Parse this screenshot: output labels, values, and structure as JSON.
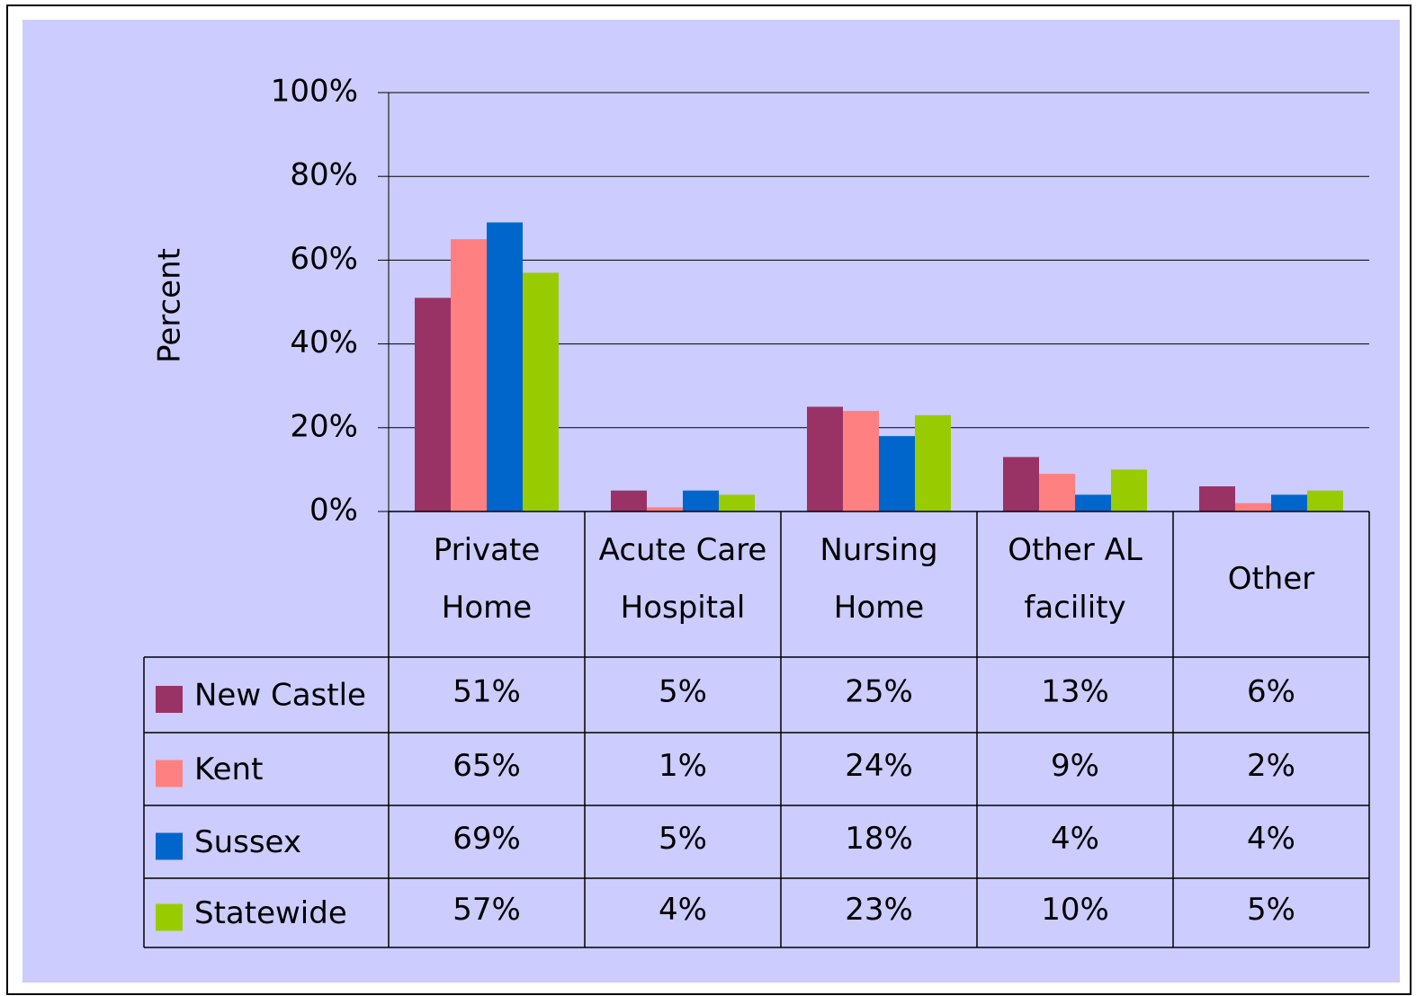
{
  "chart_data": {
    "type": "bar",
    "y_label": "Percent",
    "categories": [
      "Private\nHome",
      "Acute Care\nHospital",
      "Nursing\nHome",
      "Other AL\nfacility",
      "Other"
    ],
    "series": [
      {
        "name": "New Castle",
        "color": "#993366",
        "values": [
          51,
          5,
          25,
          13,
          6
        ],
        "value_labels": [
          "51%",
          "5%",
          "25%",
          "13%",
          "6%"
        ]
      },
      {
        "name": "Kent",
        "color": "#ff8080",
        "values": [
          65,
          1,
          24,
          9,
          2
        ],
        "value_labels": [
          "65%",
          "1%",
          "24%",
          "9%",
          "2%"
        ]
      },
      {
        "name": "Sussex",
        "color": "#0066cc",
        "values": [
          69,
          5,
          18,
          4,
          4
        ],
        "value_labels": [
          "69%",
          "5%",
          "18%",
          "4%",
          "4%"
        ]
      },
      {
        "name": "Statewide",
        "color": "#99cc00",
        "values": [
          57,
          4,
          23,
          10,
          5
        ],
        "value_labels": [
          "57%",
          "4%",
          "23%",
          "10%",
          "5%"
        ]
      }
    ],
    "ylim": [
      0,
      100
    ],
    "yticks": [
      {
        "value": 0,
        "label": "0%"
      },
      {
        "value": 20,
        "label": "20%"
      },
      {
        "value": 40,
        "label": "40%"
      },
      {
        "value": 60,
        "label": "60%"
      },
      {
        "value": 80,
        "label": "80%"
      },
      {
        "value": 100,
        "label": "100%"
      }
    ],
    "grid": true
  }
}
